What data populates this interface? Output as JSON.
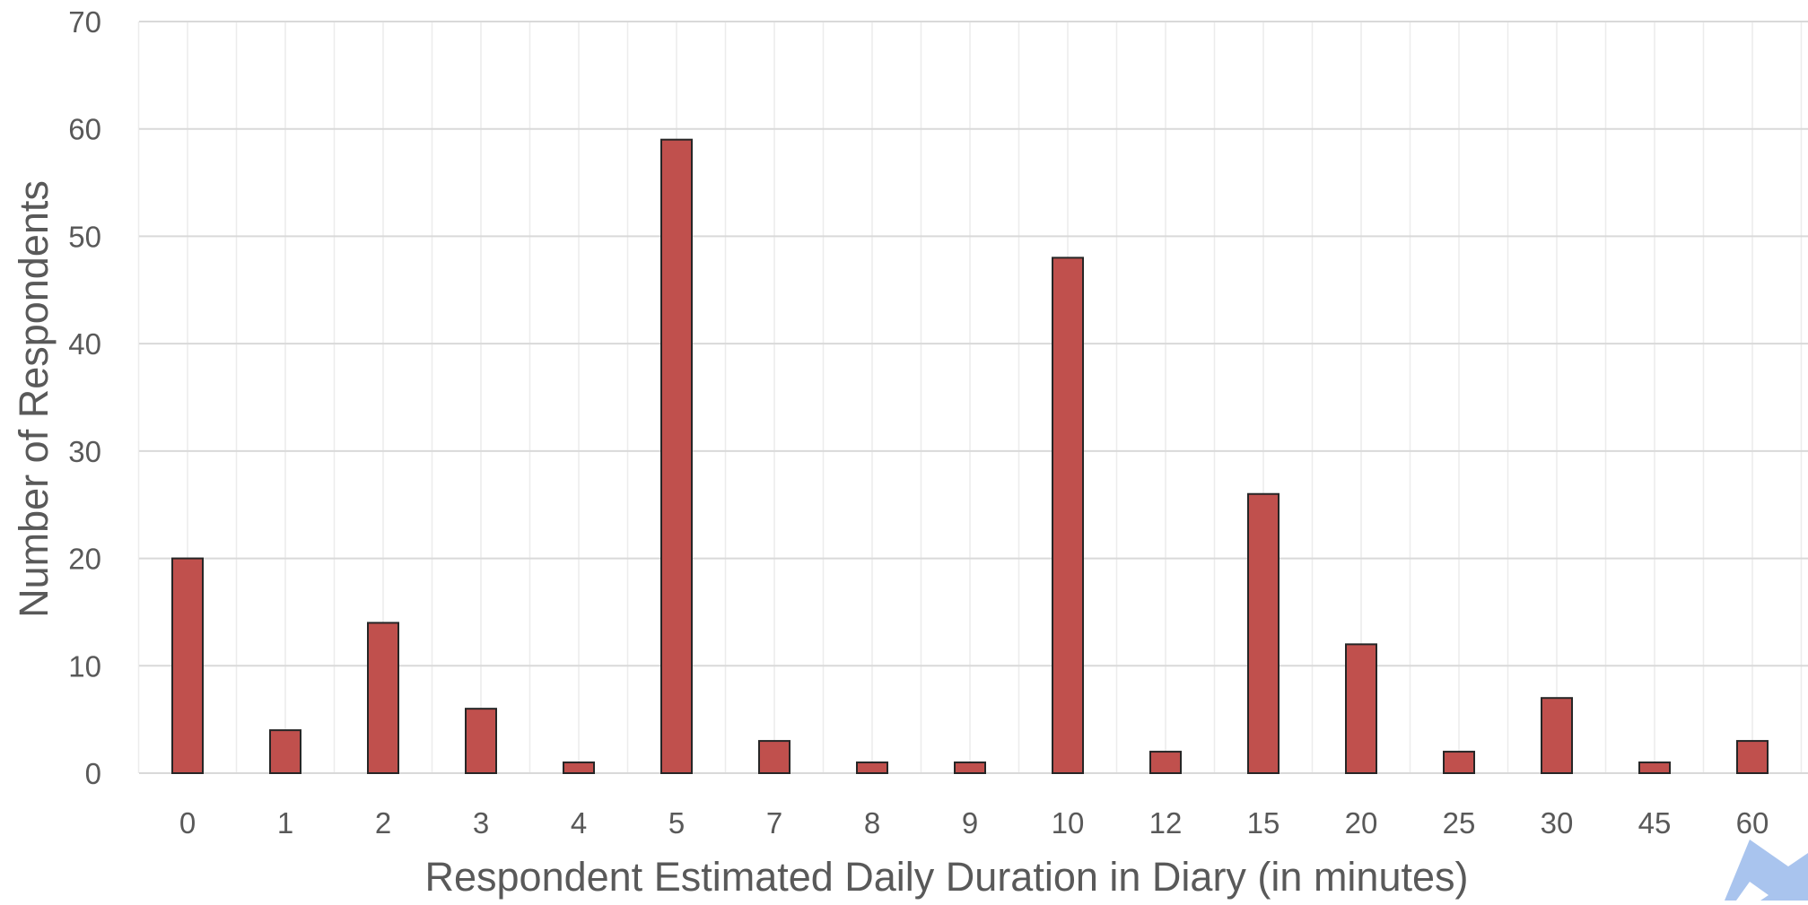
{
  "chart_data": {
    "type": "bar",
    "title": "",
    "xlabel": "Respondent Estimated Daily Duration in Diary (in minutes)",
    "ylabel": "Number of Respondents",
    "categories": [
      "0",
      "1",
      "2",
      "3",
      "4",
      "5",
      "7",
      "8",
      "9",
      "10",
      "12",
      "15",
      "20",
      "25",
      "30",
      "45",
      "60"
    ],
    "values": [
      20,
      4,
      14,
      6,
      1,
      59,
      3,
      1,
      1,
      48,
      2,
      26,
      12,
      2,
      7,
      1,
      3
    ],
    "ylim": [
      0,
      70
    ],
    "yticks": [
      "0",
      "10",
      "20",
      "30",
      "40",
      "50",
      "60",
      "70"
    ],
    "grid": "horizontal and vertical",
    "legend": "none",
    "colors": {
      "bar_fill": "#c0504d",
      "bar_outline": "#262626"
    }
  },
  "watermark": {
    "icon": "arrow-logo-icon",
    "color": "#a9c4ee"
  }
}
